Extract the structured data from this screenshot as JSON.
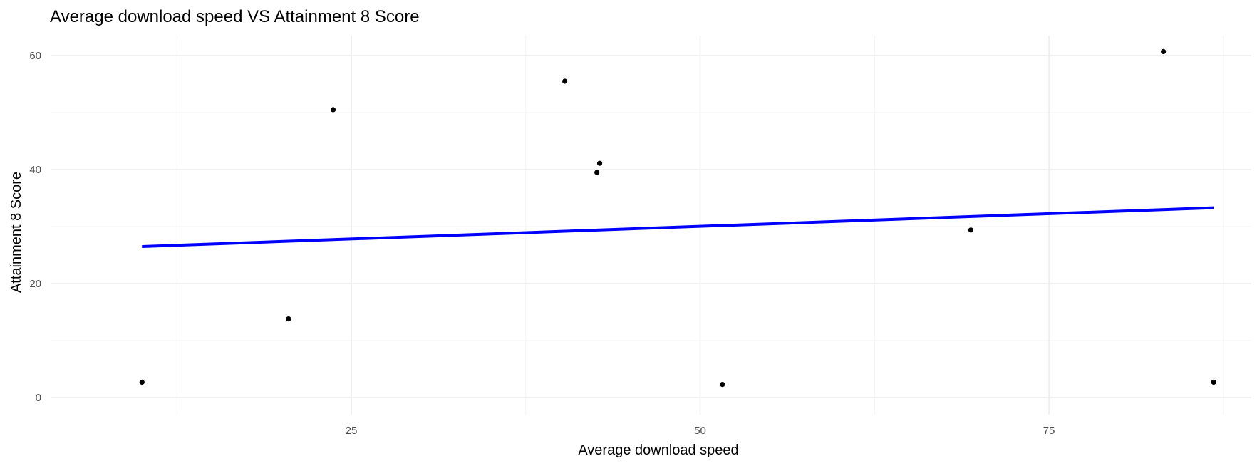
{
  "chart_data": {
    "type": "scatter",
    "title": "Average download speed VS Attainment 8 Score",
    "xlabel": "Average download speed",
    "ylabel": "Attainment 8 Score",
    "xlim": [
      3.5,
      89.5
    ],
    "ylim": [
      -3,
      63.5
    ],
    "x_ticks": [
      25,
      50,
      75
    ],
    "x_tick_labels": [
      "25",
      "50",
      "75"
    ],
    "y_ticks": [
      0,
      20,
      40,
      60
    ],
    "y_tick_labels": [
      "0",
      "20",
      "40",
      "60"
    ],
    "grid": true,
    "points": [
      {
        "x": 10.0,
        "y": 2.7
      },
      {
        "x": 20.5,
        "y": 13.8
      },
      {
        "x": 23.7,
        "y": 50.5
      },
      {
        "x": 40.3,
        "y": 55.5
      },
      {
        "x": 42.6,
        "y": 39.5
      },
      {
        "x": 42.8,
        "y": 41.1
      },
      {
        "x": 51.6,
        "y": 2.3
      },
      {
        "x": 69.4,
        "y": 29.4
      },
      {
        "x": 83.2,
        "y": 60.7
      },
      {
        "x": 86.8,
        "y": 2.7
      }
    ],
    "trendline": {
      "x": [
        10.0,
        86.8
      ],
      "y": [
        26.5,
        33.3
      ]
    },
    "colors": {
      "points": "#000000",
      "trendline": "#0000ff",
      "grid_major": "#ebebeb",
      "grid_minor": "#f3f3f3"
    }
  }
}
